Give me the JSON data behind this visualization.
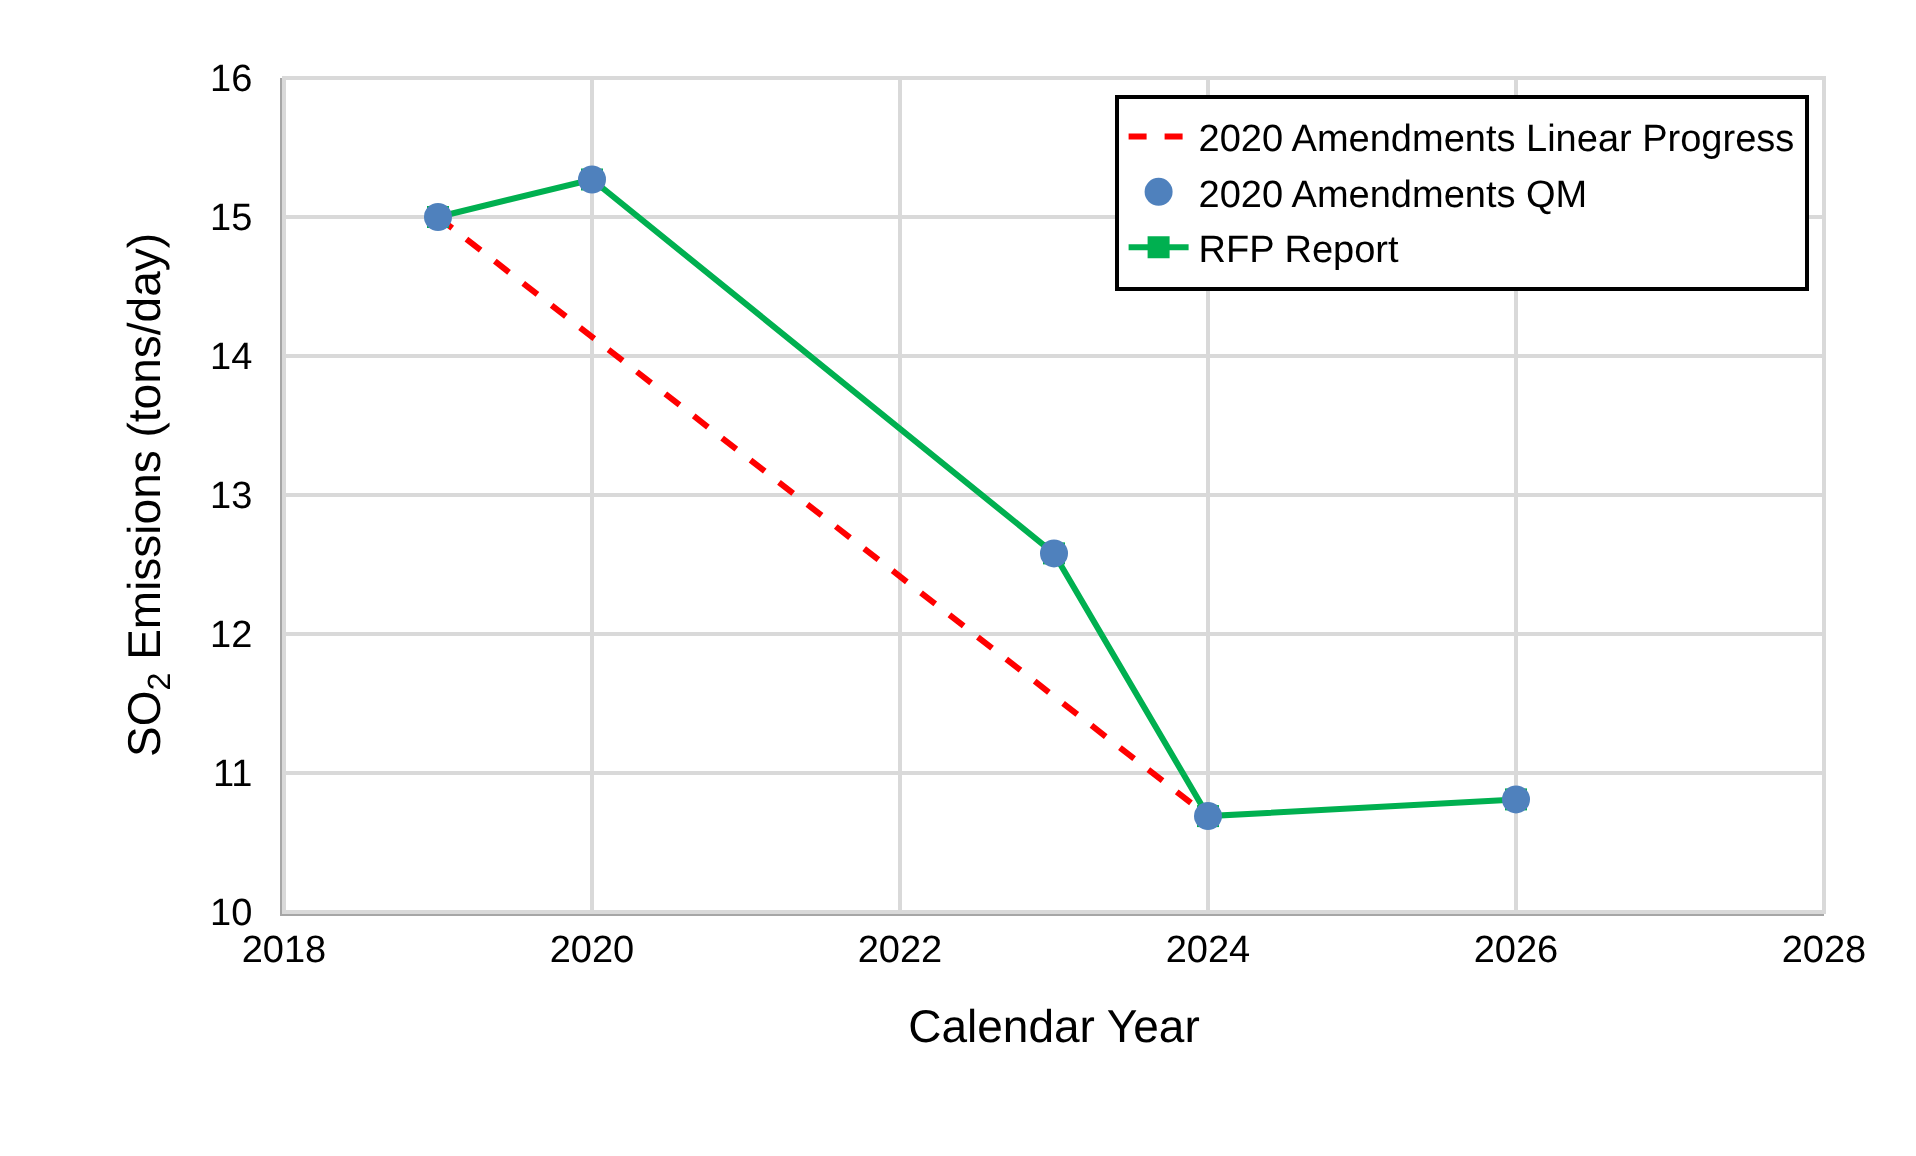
{
  "chart_data": {
    "type": "line",
    "xlabel": "Calendar Year",
    "ylabel": "SO$_{2}$ Emissions (tons/day)",
    "xlim": [
      2018,
      2028
    ],
    "xticks": [
      2018,
      2020,
      2022,
      2024,
      2026,
      2028
    ],
    "ylim": [
      10,
      16
    ],
    "yticks": [
      10,
      11,
      12,
      13,
      14,
      15,
      16
    ],
    "grid": true,
    "legend": "top right",
    "series": [
      {
        "name": "2020 Amendments Linear Progress",
        "color": "#ff0000",
        "line_style": "dashed",
        "marker": "none",
        "x": [
          2019,
          2024
        ],
        "values": [
          15.0,
          10.69
        ]
      },
      {
        "name": "2020 Amendments QM",
        "type": "scatter",
        "color": "#4f81bd",
        "marker": "circle",
        "x": [
          2019,
          2020,
          2023,
          2024,
          2026
        ],
        "values": [
          15.0,
          15.27,
          12.58,
          10.69,
          10.81
        ]
      },
      {
        "name": "RFP Report",
        "color": "#00b050",
        "line_style": "solid",
        "marker": "square",
        "x": [
          2019,
          2020,
          2023,
          2024,
          2026
        ],
        "values": [
          15.0,
          15.27,
          12.58,
          10.69,
          10.81
        ]
      }
    ]
  }
}
